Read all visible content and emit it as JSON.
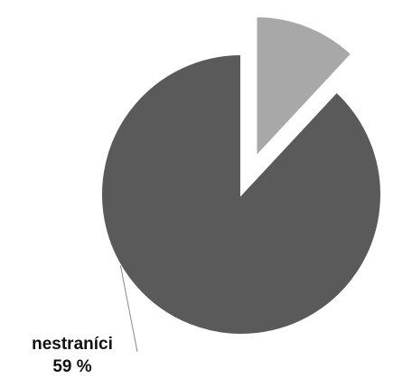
{
  "chart_data": {
    "type": "pie",
    "categories": [
      null,
      "nestraníci"
    ],
    "values": [
      8,
      59
    ],
    "value_labels": [
      null,
      "59 %"
    ],
    "colors": [
      "#a8a8a8",
      "#5a5a5a"
    ],
    "explode": [
      true,
      false
    ]
  }
}
